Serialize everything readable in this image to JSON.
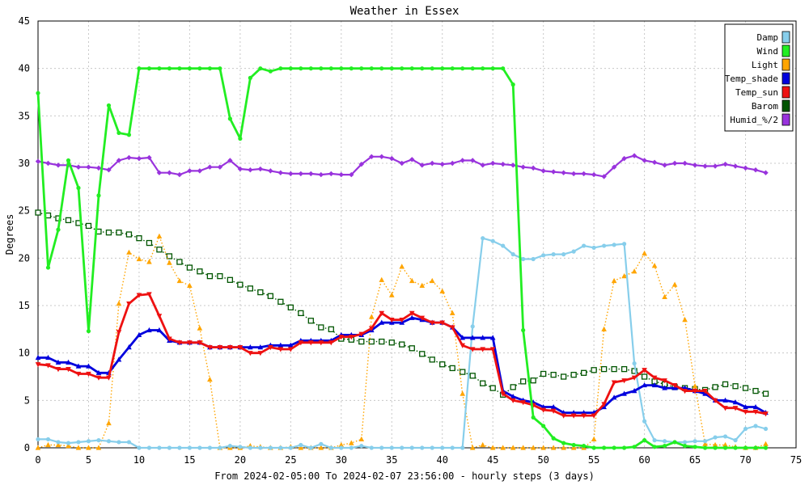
{
  "chart_data": {
    "type": "line",
    "title": "Weather in Essex",
    "xlabel": "From 2024-02-05:00 To 2024-02-07 23:56:00 - hourly steps (3 days)",
    "ylabel": "Degrees",
    "xlim": [
      0,
      75
    ],
    "ylim": [
      0,
      45
    ],
    "xticks": [
      0,
      5,
      10,
      15,
      20,
      25,
      30,
      35,
      40,
      45,
      50,
      55,
      60,
      65,
      70,
      75
    ],
    "yticks": [
      0,
      5,
      10,
      15,
      20,
      25,
      30,
      35,
      40,
      45
    ],
    "grid": true,
    "legend_position": "top-right",
    "series": [
      {
        "name": "Damp",
        "color": "#87ceeb",
        "marker": "circle",
        "style": "solid",
        "values": [
          0.9,
          0.9,
          0.6,
          0.5,
          0.6,
          0.7,
          0.8,
          0.7,
          0.6,
          0.6,
          0.0,
          0.0,
          0.0,
          0.0,
          0.0,
          0.0,
          0.0,
          0.0,
          0.0,
          0.2,
          0.1,
          0.0,
          0.0,
          0.0,
          0.0,
          0.0,
          0.3,
          0.0,
          0.4,
          0.0,
          0.0,
          0.0,
          0.2,
          0.0,
          0.0,
          0.0,
          0.0,
          0.0,
          0.0,
          0.0,
          0.0,
          0.0,
          0.0,
          12.8,
          22.1,
          21.8,
          21.3,
          20.4,
          19.9,
          19.9,
          20.3,
          20.4,
          20.4,
          20.7,
          21.3,
          21.1,
          21.3,
          21.4,
          21.5,
          8.9,
          2.8,
          0.8,
          0.7,
          0.6,
          0.6,
          0.7,
          0.7,
          1.1,
          1.2,
          0.8,
          2.0,
          2.3,
          2.0
        ]
      },
      {
        "name": "Wind",
        "color": "#22ee22",
        "marker": "circle",
        "style": "solid",
        "values": [
          37.4,
          19.0,
          23.0,
          30.3,
          27.4,
          12.3,
          26.6,
          36.1,
          33.2,
          33.0,
          40.0,
          40.0,
          40.0,
          40.0,
          40.0,
          40.0,
          40.0,
          40.0,
          40.0,
          34.7,
          32.6,
          39.0,
          40.0,
          39.7,
          40.0,
          40.0,
          40.0,
          40.0,
          40.0,
          40.0,
          40.0,
          40.0,
          40.0,
          40.0,
          40.0,
          40.0,
          40.0,
          40.0,
          40.0,
          40.0,
          40.0,
          40.0,
          40.0,
          40.0,
          40.0,
          40.0,
          40.0,
          38.3,
          12.4,
          3.2,
          2.3,
          1.0,
          0.5,
          0.3,
          0.2,
          0.0,
          0.0,
          0.0,
          0.0,
          0.1,
          0.8,
          0.1,
          0.2,
          0.6,
          0.2,
          0.1,
          0.0,
          0.0,
          0.0,
          0.0,
          0.0,
          0.0,
          0.0
        ]
      },
      {
        "name": "Light",
        "color": "#ffa500",
        "marker": "triangle-up",
        "style": "dotted",
        "values": [
          0.0,
          0.3,
          0.3,
          0.2,
          0.0,
          0.0,
          0.0,
          2.6,
          15.2,
          20.6,
          19.9,
          19.6,
          22.3,
          19.5,
          17.6,
          17.1,
          12.6,
          7.2,
          0.0,
          0.0,
          0.0,
          0.2,
          0.1,
          0.0,
          0.0,
          0.1,
          0.0,
          0.0,
          0.0,
          0.0,
          0.3,
          0.5,
          0.9,
          13.8,
          17.7,
          16.1,
          19.1,
          17.6,
          17.1,
          17.6,
          16.5,
          14.2,
          5.7,
          0.0,
          0.3,
          0.0,
          0.0,
          0.0,
          0.0,
          0.0,
          0.0,
          0.0,
          0.0,
          0.0,
          0.0,
          0.9,
          12.5,
          17.6,
          18.1,
          18.6,
          20.5,
          19.2,
          15.9,
          17.2,
          13.5,
          6.5,
          0.4,
          0.3,
          0.3,
          0.1,
          0.0,
          0.0,
          0.4
        ]
      },
      {
        "name": "Temp_shade",
        "color": "#0000dd",
        "marker": "triangle-up",
        "style": "solid",
        "values": [
          9.5,
          9.5,
          9.0,
          9.0,
          8.6,
          8.6,
          7.9,
          7.9,
          9.3,
          10.6,
          11.9,
          12.4,
          12.4,
          11.3,
          11.1,
          11.1,
          11.1,
          10.6,
          10.6,
          10.6,
          10.6,
          10.6,
          10.6,
          10.8,
          10.8,
          10.8,
          11.3,
          11.3,
          11.3,
          11.3,
          11.9,
          11.9,
          11.9,
          12.4,
          13.2,
          13.2,
          13.2,
          13.7,
          13.5,
          13.2,
          13.2,
          12.7,
          11.6,
          11.6,
          11.6,
          11.6,
          6.0,
          5.4,
          5.0,
          4.8,
          4.3,
          4.3,
          3.7,
          3.7,
          3.7,
          3.7,
          4.3,
          5.3,
          5.7,
          6.0,
          6.6,
          6.6,
          6.3,
          6.3,
          6.3,
          6.0,
          5.7,
          5.0,
          5.0,
          4.8,
          4.3,
          4.3,
          3.7
        ]
      },
      {
        "name": "Temp_sun",
        "color": "#ee1111",
        "marker": "triangle-down",
        "style": "solid",
        "values": [
          8.8,
          8.7,
          8.3,
          8.3,
          7.8,
          7.8,
          7.4,
          7.4,
          12.2,
          15.2,
          16.1,
          16.2,
          13.9,
          11.5,
          11.1,
          11.1,
          11.1,
          10.6,
          10.6,
          10.6,
          10.6,
          10.0,
          10.0,
          10.6,
          10.4,
          10.4,
          11.1,
          11.1,
          11.1,
          11.1,
          11.7,
          11.7,
          12.0,
          12.6,
          14.2,
          13.5,
          13.5,
          14.2,
          13.7,
          13.2,
          13.2,
          12.7,
          10.8,
          10.4,
          10.4,
          10.4,
          5.7,
          5.0,
          4.8,
          4.5,
          4.0,
          3.9,
          3.4,
          3.4,
          3.4,
          3.4,
          4.6,
          6.9,
          7.1,
          7.4,
          8.2,
          7.4,
          7.1,
          6.6,
          6.0,
          6.0,
          6.0,
          5.0,
          4.2,
          4.2,
          3.8,
          3.8,
          3.6
        ]
      },
      {
        "name": "Barom",
        "color": "#005500",
        "marker": "square",
        "style": "dotted",
        "values": [
          24.8,
          24.5,
          24.2,
          24.0,
          23.7,
          23.4,
          22.8,
          22.7,
          22.7,
          22.5,
          22.1,
          21.6,
          20.9,
          20.2,
          19.6,
          19.0,
          18.6,
          18.1,
          18.1,
          17.7,
          17.2,
          16.8,
          16.4,
          16.0,
          15.4,
          14.8,
          14.2,
          13.4,
          12.7,
          12.5,
          11.5,
          11.4,
          11.2,
          11.2,
          11.2,
          11.1,
          10.9,
          10.5,
          9.9,
          9.3,
          8.8,
          8.4,
          8.0,
          7.6,
          6.8,
          6.3,
          5.6,
          6.4,
          7.0,
          7.1,
          7.8,
          7.7,
          7.5,
          7.7,
          7.9,
          8.2,
          8.3,
          8.3,
          8.3,
          8.1,
          7.5,
          7.0,
          6.7,
          6.4,
          6.3,
          6.2,
          6.1,
          6.4,
          6.7,
          6.5,
          6.3,
          6.0,
          5.7
        ]
      },
      {
        "name": "Humid_%/2",
        "color": "#9933dd",
        "marker": "diamond",
        "style": "solid",
        "values": [
          30.2,
          30.0,
          29.8,
          29.8,
          29.6,
          29.6,
          29.5,
          29.3,
          30.3,
          30.6,
          30.5,
          30.6,
          29.0,
          29.0,
          28.8,
          29.2,
          29.2,
          29.6,
          29.6,
          30.3,
          29.4,
          29.3,
          29.4,
          29.2,
          29.0,
          28.9,
          28.9,
          28.9,
          28.8,
          28.9,
          28.8,
          28.8,
          29.9,
          30.7,
          30.7,
          30.5,
          30.0,
          30.4,
          29.8,
          30.0,
          29.9,
          30.0,
          30.3,
          30.3,
          29.8,
          30.0,
          29.9,
          29.8,
          29.6,
          29.5,
          29.2,
          29.1,
          29.0,
          28.9,
          28.9,
          28.8,
          28.6,
          29.6,
          30.5,
          30.8,
          30.3,
          30.1,
          29.8,
          30.0,
          30.0,
          29.8,
          29.7,
          29.7,
          29.9,
          29.7,
          29.5,
          29.3,
          29.0
        ]
      }
    ]
  }
}
